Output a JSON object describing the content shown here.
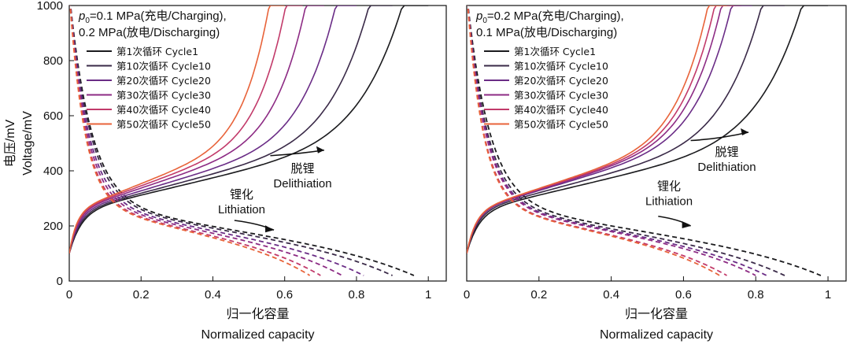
{
  "chart_data": [
    {
      "type": "line",
      "condition_lines": [
        "=0.1 MPa(充电/Charging),",
        "0.2 MPa(放电/Discharging)"
      ],
      "condition_symbol": "p",
      "condition_subscript": "0",
      "ylabel_cn": "电压/mV",
      "ylabel_en": "Voltage/mV",
      "xlabel_cn": "归一化容量",
      "xlabel_en": "Normalized capacity",
      "xlim": [
        0,
        1.05
      ],
      "ylim": [
        0,
        1000
      ],
      "xticks": [
        "0",
        "0.2",
        "0.4",
        "0.6",
        "0.8",
        "1"
      ],
      "yticks": [
        "0",
        "200",
        "400",
        "600",
        "800",
        "1000"
      ],
      "annotations": {
        "delithiation": [
          "脱锂",
          "Delithiation"
        ],
        "lithiation": [
          "锂化",
          "Lithiation"
        ]
      },
      "series": [
        {
          "name": "第1次循环 Cycle1",
          "color": "#1b1b1e",
          "charge_end": 1.0,
          "discharge_end": 0.96
        },
        {
          "name": "第10次循环 Cycle10",
          "color": "#3a2a48",
          "charge_end": 0.9,
          "discharge_end": 0.9
        },
        {
          "name": "第20次循环 Cycle20",
          "color": "#6a2c86",
          "charge_end": 0.8,
          "discharge_end": 0.82
        },
        {
          "name": "第30次循环 Cycle30",
          "color": "#8d2b84",
          "charge_end": 0.71,
          "discharge_end": 0.76
        },
        {
          "name": "第40次循环 Cycle40",
          "color": "#c23a6a",
          "charge_end": 0.65,
          "discharge_end": 0.7
        },
        {
          "name": "第50次循环 Cycle50",
          "color": "#e8633a",
          "charge_end": 0.6,
          "discharge_end": 0.67
        }
      ]
    },
    {
      "type": "line",
      "condition_lines": [
        "=0.2 MPa(充电/Charging),",
        "0.1 MPa(放电/Discharging)"
      ],
      "condition_symbol": "p",
      "condition_subscript": "0",
      "ylabel_cn": "",
      "ylabel_en": "",
      "xlabel_cn": "归一化容量",
      "xlabel_en": "Normalized capacity",
      "xlim": [
        0,
        1.05
      ],
      "ylim": [
        0,
        1000
      ],
      "xticks": [
        "0",
        "0.2",
        "0.4",
        "0.6",
        "0.8",
        "1"
      ],
      "yticks": [],
      "annotations": {
        "delithiation": [
          "脱锂",
          "Delithiation"
        ],
        "lithiation": [
          "锂化",
          "Lithiation"
        ]
      },
      "series": [
        {
          "name": "第1次循环 Cycle1",
          "color": "#1b1b1e",
          "charge_end": 1.0,
          "discharge_end": 0.98
        },
        {
          "name": "第10次循环 Cycle10",
          "color": "#3a2a48",
          "charge_end": 0.88,
          "discharge_end": 0.88
        },
        {
          "name": "第20次循环 Cycle20",
          "color": "#6a2c86",
          "charge_end": 0.79,
          "discharge_end": 0.83
        },
        {
          "name": "第30次循环 Cycle30",
          "color": "#8d2b84",
          "charge_end": 0.76,
          "discharge_end": 0.8
        },
        {
          "name": "第40次循环 Cycle40",
          "color": "#c23a6a",
          "charge_end": 0.74,
          "discharge_end": 0.72
        },
        {
          "name": "第50次循环 Cycle50",
          "color": "#e8633a",
          "charge_end": 0.72,
          "discharge_end": 0.7
        }
      ]
    }
  ]
}
